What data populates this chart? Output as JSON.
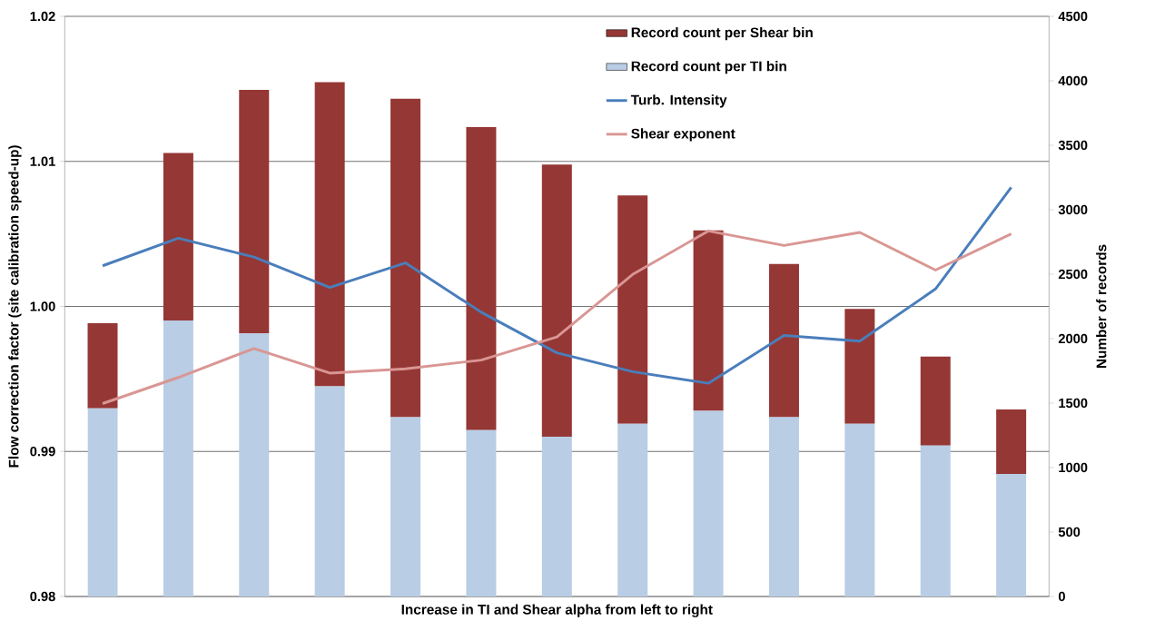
{
  "chart_data": {
    "type": "bar",
    "xlabel": "Increase in TI and Shear alpha from left to right",
    "ylabel": "Flow correction factor (site calibration speed-up)",
    "y2label": "Number of records",
    "categories": [
      null,
      null,
      null,
      null,
      null,
      null,
      null,
      null,
      null,
      null,
      null,
      null,
      null
    ],
    "stacked": true,
    "series": [
      {
        "name": "Record count per TI bin",
        "axis": "y2",
        "color": "#b9cde5",
        "values": [
          1460,
          2140,
          2040,
          1630,
          1390,
          1290,
          1240,
          1340,
          1440,
          1390,
          1340,
          1170,
          950
        ]
      },
      {
        "name": "Record count per Shear bin",
        "axis": "y2",
        "color": "#953735",
        "values": [
          660,
          1300,
          1890,
          2360,
          2470,
          2350,
          2110,
          1770,
          1400,
          1190,
          890,
          690,
          500
        ]
      },
      {
        "name": "Turb. Intensity",
        "type": "line",
        "color": "#4a7ebb",
        "values": [
          1.0028,
          1.0047,
          1.0034,
          1.0013,
          1.003,
          0.9996,
          0.9968,
          0.9955,
          0.9947,
          0.998,
          0.9976,
          1.0012,
          1.0082
        ]
      },
      {
        "name": "Shear exponent",
        "type": "line",
        "color": "#d99694",
        "values": [
          0.9933,
          0.9951,
          0.9971,
          0.9954,
          0.9957,
          0.9963,
          0.9979,
          1.0022,
          1.0052,
          1.0042,
          1.0051,
          1.0025,
          1.005
        ]
      }
    ],
    "ylim": [
      0.98,
      1.02
    ],
    "yticks": [
      0.98,
      0.99,
      {
        "value": 1.0,
        "label": "1.00"
      },
      1.01,
      1.02
    ],
    "y2lim": [
      0,
      4500
    ],
    "y2ticks": [
      0,
      500,
      1000,
      1500,
      2000,
      2500,
      3000,
      3500,
      4000,
      4500
    ],
    "grid": "y",
    "legend": "top right",
    "marker": "none",
    "line_style": "solid"
  }
}
